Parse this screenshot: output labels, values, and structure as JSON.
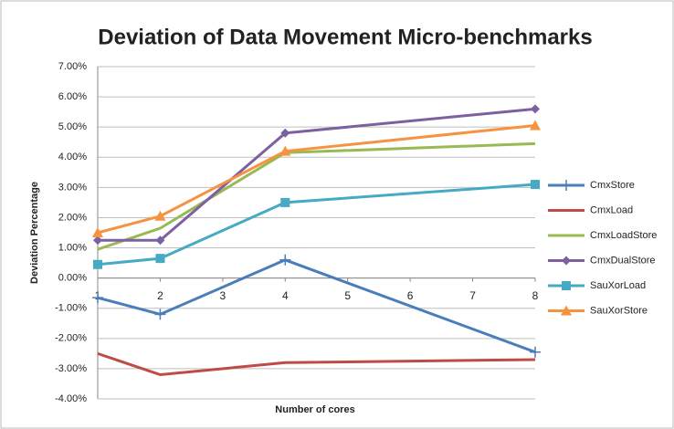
{
  "chart_data": {
    "type": "line",
    "title": "Deviation of Data Movement Micro-benchmarks",
    "x_label": "Number of cores",
    "y_label": "Deviation Percentage",
    "x": [
      1,
      2,
      4,
      8
    ],
    "xlim": [
      1,
      8
    ],
    "xticks": [
      1,
      2,
      3,
      4,
      5,
      6,
      7,
      8
    ],
    "ylim": [
      -4,
      7
    ],
    "yticks": [
      {
        "value": 7,
        "label": "7.00%"
      },
      {
        "value": 6,
        "label": "6.00%"
      },
      {
        "value": 5,
        "label": "5.00%"
      },
      {
        "value": 4,
        "label": "4.00%"
      },
      {
        "value": 3,
        "label": "3.00%"
      },
      {
        "value": 2,
        "label": "2.00%"
      },
      {
        "value": 1,
        "label": "1.00%"
      },
      {
        "value": 0,
        "label": "0.00%"
      },
      {
        "value": -1,
        "label": "-1.00%"
      },
      {
        "value": -2,
        "label": "-2.00%"
      },
      {
        "value": -3,
        "label": "-3.00%"
      },
      {
        "value": -4,
        "label": "-4.00%"
      }
    ],
    "grid": true,
    "legend": "right",
    "series": [
      {
        "name": "CmxStore",
        "color": "#4a7ebb",
        "marker": "plus",
        "values": [
          -0.65,
          -1.2,
          0.6,
          -2.45
        ]
      },
      {
        "name": "CmxLoad",
        "color": "#be4b48",
        "marker": "none",
        "values": [
          -2.5,
          -3.2,
          -2.8,
          -2.7
        ]
      },
      {
        "name": "CmxLoadStore",
        "color": "#98b954",
        "marker": "none",
        "values": [
          0.95,
          1.65,
          4.15,
          4.45
        ]
      },
      {
        "name": "CmxDualStore",
        "color": "#7d60a0",
        "marker": "diamond",
        "values": [
          1.25,
          1.25,
          4.8,
          5.6
        ]
      },
      {
        "name": "SauXorLoad",
        "color": "#46aac5",
        "marker": "square",
        "values": [
          0.45,
          0.65,
          2.5,
          3.1
        ]
      },
      {
        "name": "SauXorStore",
        "color": "#f69240",
        "marker": "triangle",
        "values": [
          1.5,
          2.05,
          4.2,
          5.05
        ]
      }
    ]
  }
}
